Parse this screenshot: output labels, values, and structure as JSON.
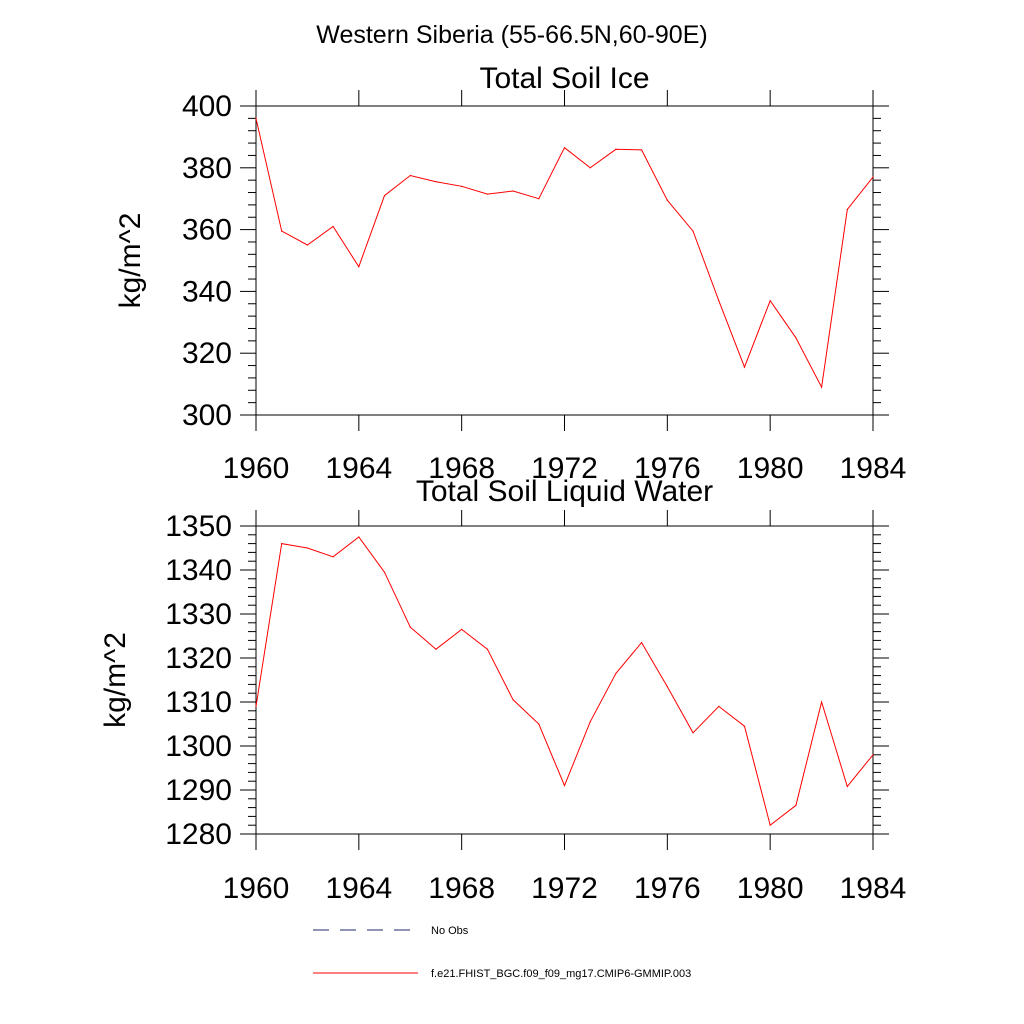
{
  "figure": {
    "main_title": "Western Siberia (55-66.5N,60-90E)",
    "colors": {
      "model": "#ff0000",
      "obs": "#1f2a6b",
      "axis": "#000000"
    }
  },
  "chart_data": [
    {
      "type": "line",
      "title": "Total Soil Ice",
      "xlabel": "",
      "ylabel": "kg/m^2",
      "xlim": [
        1960,
        1984
      ],
      "ylim": [
        300,
        400
      ],
      "x_ticks": [
        1960,
        1964,
        1968,
        1972,
        1976,
        1980,
        1984
      ],
      "y_ticks": [
        300,
        320,
        340,
        360,
        380,
        400
      ],
      "grid": false,
      "series": [
        {
          "name": "f.e21.FHIST_BGC.f09_f09_mg17.CMIP6-GMMIP.003",
          "x": [
            1960,
            1961,
            1962,
            1963,
            1964,
            1965,
            1966,
            1967,
            1968,
            1969,
            1970,
            1971,
            1972,
            1973,
            1974,
            1975,
            1976,
            1977,
            1978,
            1979,
            1980,
            1981,
            1982,
            1983,
            1984
          ],
          "values": [
            396,
            359.5,
            355,
            361,
            348,
            371,
            377.5,
            375.5,
            374,
            371.5,
            372.5,
            370,
            386.5,
            380,
            386,
            385.8,
            369.5,
            359.5,
            337,
            315.5,
            337,
            325,
            309,
            366.5,
            377
          ]
        }
      ]
    },
    {
      "type": "line",
      "title": "Total Soil Liquid Water",
      "xlabel": "",
      "ylabel": "kg/m^2",
      "xlim": [
        1960,
        1984
      ],
      "ylim": [
        1280,
        1350
      ],
      "x_ticks": [
        1960,
        1964,
        1968,
        1972,
        1976,
        1980,
        1984
      ],
      "y_ticks": [
        1280,
        1290,
        1300,
        1310,
        1320,
        1330,
        1340,
        1350
      ],
      "grid": false,
      "series": [
        {
          "name": "f.e21.FHIST_BGC.f09_f09_mg17.CMIP6-GMMIP.003",
          "x": [
            1960,
            1961,
            1962,
            1963,
            1964,
            1965,
            1966,
            1967,
            1968,
            1969,
            1970,
            1971,
            1972,
            1973,
            1974,
            1975,
            1976,
            1977,
            1978,
            1979,
            1980,
            1981,
            1982,
            1983,
            1984
          ],
          "values": [
            1309,
            1346,
            1345,
            1343,
            1347.5,
            1339.5,
            1327,
            1322,
            1326.5,
            1322,
            1310.5,
            1305,
            1291,
            1305.5,
            1316.5,
            1323.5,
            1313.5,
            1303,
            1309,
            1304.5,
            1282,
            1286.5,
            1310,
            1290.8,
            1298
          ]
        }
      ]
    }
  ],
  "legend": {
    "placement": "bottom",
    "entries": [
      {
        "label": "No Obs",
        "style": "dashed"
      },
      {
        "label": "f.e21.FHIST_BGC.f09_f09_mg17.CMIP6-GMMIP.003",
        "style": "solid"
      }
    ]
  }
}
